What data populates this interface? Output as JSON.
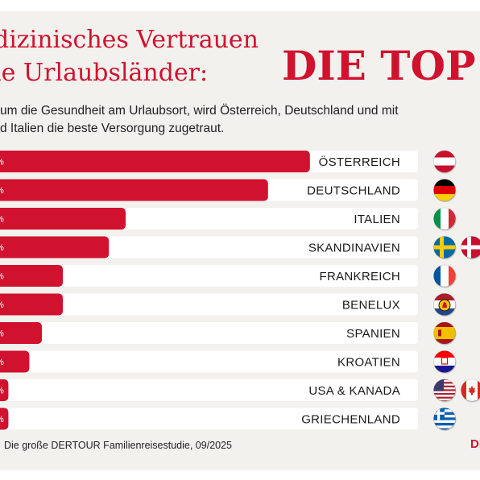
{
  "header": {
    "title_line_1": "dizinisches Vertrauen",
    "title_line_2": "ie Urlaubsländer:",
    "big_headline": "DIE TOP",
    "subtitle_line_1": "um die Gesundheit am Urlaubsort, wird Österreich, Deutschland und mit",
    "subtitle_line_2": "d Italien die beste Versorgung zugetraut."
  },
  "footer": {
    "source": "Die große DERTOUR Familienreisestudie, 09/2025",
    "logo_text": "DE"
  },
  "colors": {
    "accent": "#d0122e",
    "panel_background": "#f2f1ee",
    "track": "#ffffff"
  },
  "chart_data": {
    "type": "bar",
    "orientation": "horizontal",
    "categories": [
      "ÖSTERREICH",
      "DEUTSCHLAND",
      "ITALIEN",
      "SKANDINAVIEN",
      "FRANKREICH",
      "BENELUX",
      "SPANIEN",
      "KROATIEN",
      "USA & KANADA",
      "GRIECHENLAND"
    ],
    "value_labels": [
      "%",
      "%",
      "%",
      "%",
      "%",
      "%",
      "%",
      "%",
      "%",
      "%"
    ],
    "series": [
      {
        "values": [
          74,
          64,
          30,
          26,
          15,
          15,
          10,
          7,
          2,
          2
        ]
      }
    ],
    "flags": [
      [
        "austria-flag"
      ],
      [
        "germany-flag"
      ],
      [
        "italy-flag"
      ],
      [
        "sweden-flag",
        "denmark-flag"
      ],
      [
        "france-flag"
      ],
      [
        "benelux-flag"
      ],
      [
        "spain-flag"
      ],
      [
        "croatia-flag"
      ],
      [
        "usa-flag",
        "canada-flag"
      ],
      [
        "greece-flag"
      ]
    ],
    "xlim": [
      0,
      100
    ],
    "grid": false,
    "legend": "none"
  }
}
